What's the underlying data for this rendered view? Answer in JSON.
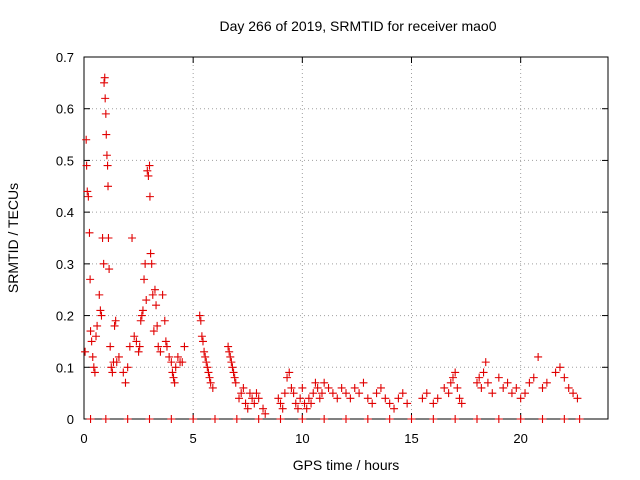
{
  "chart_data": {
    "type": "scatter",
    "title": "Day 266 of 2019, SRMTID for receiver mao0",
    "xlabel": "GPS time / hours",
    "ylabel": "SRMTID / TECUs",
    "xlim": [
      0,
      24
    ],
    "ylim": [
      0,
      0.7
    ],
    "xticks": [
      0,
      5,
      10,
      15,
      20
    ],
    "yticks": [
      0,
      0.1,
      0.2,
      0.3,
      0.4,
      0.5,
      0.6,
      0.7
    ],
    "xtick_labels": [
      "0",
      "5",
      "10",
      "15",
      "20"
    ],
    "ytick_labels": [
      "0",
      "0.1",
      "0.2",
      "0.3",
      "0.4",
      "0.5",
      "0.6",
      "0.7"
    ],
    "grid": true,
    "marker": "+",
    "color": "#e00000",
    "series": [
      {
        "name": "SRMTID",
        "points": [
          [
            0.05,
            0.13
          ],
          [
            0.1,
            0.54
          ],
          [
            0.12,
            0.49
          ],
          [
            0.15,
            0.44
          ],
          [
            0.2,
            0.43
          ],
          [
            0.25,
            0.36
          ],
          [
            0.28,
            0.27
          ],
          [
            0.3,
            0.17
          ],
          [
            0.35,
            0.15
          ],
          [
            0.4,
            0.12
          ],
          [
            0.45,
            0.1
          ],
          [
            0.5,
            0.09
          ],
          [
            0.55,
            0.16
          ],
          [
            0.6,
            0.18
          ],
          [
            0.7,
            0.24
          ],
          [
            0.75,
            0.21
          ],
          [
            0.8,
            0.2
          ],
          [
            0.85,
            0.35
          ],
          [
            0.9,
            0.3
          ],
          [
            0.92,
            0.65
          ],
          [
            0.95,
            0.66
          ],
          [
            0.97,
            0.62
          ],
          [
            1.0,
            0.59
          ],
          [
            1.02,
            0.55
          ],
          [
            1.05,
            0.51
          ],
          [
            1.08,
            0.49
          ],
          [
            1.1,
            0.45
          ],
          [
            1.12,
            0.35
          ],
          [
            1.15,
            0.29
          ],
          [
            1.2,
            0.14
          ],
          [
            1.25,
            0.1
          ],
          [
            1.3,
            0.09
          ],
          [
            1.35,
            0.11
          ],
          [
            1.4,
            0.18
          ],
          [
            1.45,
            0.19
          ],
          [
            1.5,
            0.11
          ],
          [
            1.6,
            0.12
          ],
          [
            1.8,
            0.09
          ],
          [
            1.9,
            0.07
          ],
          [
            2.0,
            0.1
          ],
          [
            2.1,
            0.14
          ],
          [
            2.2,
            0.35
          ],
          [
            2.3,
            0.16
          ],
          [
            2.4,
            0.15
          ],
          [
            2.5,
            0.13
          ],
          [
            2.55,
            0.14
          ],
          [
            2.6,
            0.19
          ],
          [
            2.65,
            0.2
          ],
          [
            2.7,
            0.21
          ],
          [
            2.75,
            0.27
          ],
          [
            2.8,
            0.3
          ],
          [
            2.85,
            0.23
          ],
          [
            2.9,
            0.48
          ],
          [
            2.95,
            0.47
          ],
          [
            3.0,
            0.49
          ],
          [
            3.02,
            0.43
          ],
          [
            3.05,
            0.32
          ],
          [
            3.1,
            0.3
          ],
          [
            3.15,
            0.24
          ],
          [
            3.2,
            0.17
          ],
          [
            3.25,
            0.25
          ],
          [
            3.3,
            0.22
          ],
          [
            3.35,
            0.18
          ],
          [
            3.4,
            0.14
          ],
          [
            3.5,
            0.13
          ],
          [
            3.6,
            0.24
          ],
          [
            3.7,
            0.19
          ],
          [
            3.75,
            0.15
          ],
          [
            3.8,
            0.14
          ],
          [
            3.9,
            0.12
          ],
          [
            4.0,
            0.11
          ],
          [
            4.05,
            0.09
          ],
          [
            4.1,
            0.08
          ],
          [
            4.15,
            0.07
          ],
          [
            4.2,
            0.1
          ],
          [
            4.3,
            0.12
          ],
          [
            4.4,
            0.11
          ],
          [
            4.5,
            0.11
          ],
          [
            4.6,
            0.14
          ],
          [
            5.3,
            0.2
          ],
          [
            5.35,
            0.19
          ],
          [
            5.4,
            0.16
          ],
          [
            5.45,
            0.15
          ],
          [
            5.5,
            0.13
          ],
          [
            5.55,
            0.12
          ],
          [
            5.6,
            0.11
          ],
          [
            5.65,
            0.1
          ],
          [
            5.7,
            0.09
          ],
          [
            5.75,
            0.08
          ],
          [
            5.8,
            0.07
          ],
          [
            5.9,
            0.06
          ],
          [
            6.6,
            0.14
          ],
          [
            6.65,
            0.13
          ],
          [
            6.7,
            0.12
          ],
          [
            6.75,
            0.11
          ],
          [
            6.8,
            0.1
          ],
          [
            6.85,
            0.09
          ],
          [
            6.9,
            0.08
          ],
          [
            6.95,
            0.07
          ],
          [
            7.1,
            0.04
          ],
          [
            7.2,
            0.05
          ],
          [
            7.3,
            0.06
          ],
          [
            7.4,
            0.03
          ],
          [
            7.5,
            0.02
          ],
          [
            7.6,
            0.05
          ],
          [
            7.7,
            0.04
          ],
          [
            7.8,
            0.03
          ],
          [
            7.9,
            0.05
          ],
          [
            8.0,
            0.04
          ],
          [
            8.2,
            0.02
          ],
          [
            8.3,
            0.01
          ],
          [
            8.9,
            0.04
          ],
          [
            9.0,
            0.03
          ],
          [
            9.1,
            0.02
          ],
          [
            9.2,
            0.05
          ],
          [
            9.3,
            0.08
          ],
          [
            9.4,
            0.09
          ],
          [
            9.5,
            0.06
          ],
          [
            9.6,
            0.05
          ],
          [
            9.7,
            0.03
          ],
          [
            9.8,
            0.02
          ],
          [
            9.9,
            0.04
          ],
          [
            10.0,
            0.06
          ],
          [
            10.1,
            0.03
          ],
          [
            10.2,
            0.02
          ],
          [
            10.3,
            0.04
          ],
          [
            10.4,
            0.03
          ],
          [
            10.5,
            0.05
          ],
          [
            10.6,
            0.07
          ],
          [
            10.7,
            0.06
          ],
          [
            10.8,
            0.04
          ],
          [
            10.9,
            0.05
          ],
          [
            11.0,
            0.07
          ],
          [
            11.2,
            0.06
          ],
          [
            11.4,
            0.05
          ],
          [
            11.6,
            0.04
          ],
          [
            11.8,
            0.06
          ],
          [
            12.0,
            0.05
          ],
          [
            12.2,
            0.04
          ],
          [
            12.4,
            0.06
          ],
          [
            12.6,
            0.05
          ],
          [
            12.8,
            0.07
          ],
          [
            13.0,
            0.04
          ],
          [
            13.2,
            0.03
          ],
          [
            13.4,
            0.05
          ],
          [
            13.6,
            0.06
          ],
          [
            13.8,
            0.04
          ],
          [
            14.0,
            0.03
          ],
          [
            14.2,
            0.02
          ],
          [
            14.4,
            0.04
          ],
          [
            14.6,
            0.05
          ],
          [
            14.8,
            0.03
          ],
          [
            15.5,
            0.04
          ],
          [
            15.7,
            0.05
          ],
          [
            16.0,
            0.03
          ],
          [
            16.2,
            0.04
          ],
          [
            16.5,
            0.06
          ],
          [
            16.7,
            0.05
          ],
          [
            16.8,
            0.07
          ],
          [
            16.9,
            0.08
          ],
          [
            17.0,
            0.09
          ],
          [
            17.1,
            0.06
          ],
          [
            17.2,
            0.04
          ],
          [
            17.3,
            0.03
          ],
          [
            18.0,
            0.07
          ],
          [
            18.1,
            0.08
          ],
          [
            18.2,
            0.06
          ],
          [
            18.3,
            0.09
          ],
          [
            18.4,
            0.11
          ],
          [
            18.5,
            0.07
          ],
          [
            18.7,
            0.05
          ],
          [
            19.0,
            0.08
          ],
          [
            19.2,
            0.06
          ],
          [
            19.4,
            0.07
          ],
          [
            19.6,
            0.05
          ],
          [
            19.8,
            0.06
          ],
          [
            20.0,
            0.04
          ],
          [
            20.2,
            0.05
          ],
          [
            20.4,
            0.07
          ],
          [
            20.6,
            0.08
          ],
          [
            20.8,
            0.12
          ],
          [
            21.0,
            0.06
          ],
          [
            21.2,
            0.07
          ],
          [
            21.6,
            0.09
          ],
          [
            21.8,
            0.1
          ],
          [
            22.0,
            0.08
          ],
          [
            22.2,
            0.06
          ],
          [
            22.4,
            0.05
          ],
          [
            22.6,
            0.04
          ],
          [
            0.3,
            0.0
          ],
          [
            1.0,
            0.0
          ],
          [
            2.0,
            0.0
          ],
          [
            3.0,
            0.0
          ],
          [
            4.0,
            0.0
          ],
          [
            5.0,
            0.0
          ],
          [
            6.0,
            0.0
          ],
          [
            7.0,
            0.0
          ],
          [
            8.0,
            0.0
          ],
          [
            9.0,
            0.0
          ],
          [
            10.0,
            0.0
          ],
          [
            11.0,
            0.0
          ],
          [
            12.0,
            0.0
          ],
          [
            13.0,
            0.0
          ],
          [
            14.0,
            0.0
          ],
          [
            15.0,
            0.0
          ],
          [
            16.0,
            0.0
          ],
          [
            17.0,
            0.0
          ],
          [
            18.0,
            0.0
          ],
          [
            19.0,
            0.0
          ],
          [
            20.0,
            0.0
          ],
          [
            21.0,
            0.0
          ],
          [
            22.0,
            0.0
          ],
          [
            22.7,
            0.0
          ]
        ]
      }
    ]
  }
}
